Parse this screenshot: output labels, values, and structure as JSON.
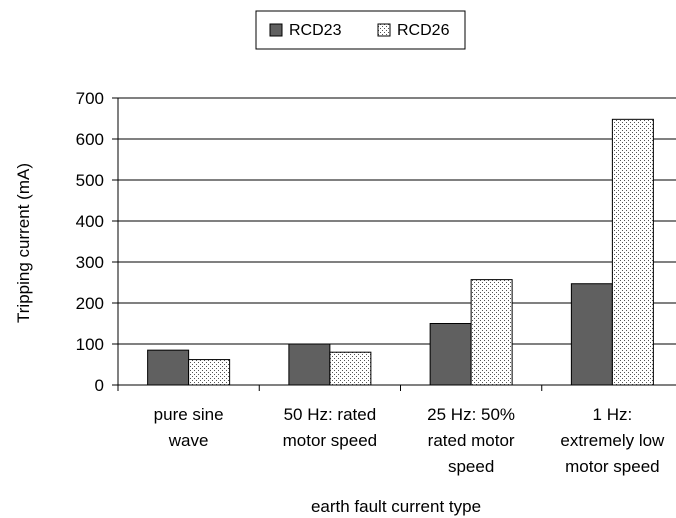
{
  "chart_data": {
    "type": "bar",
    "title": "",
    "xlabel": "earth fault current type",
    "ylabel": "Tripping current (mA)",
    "ylim": [
      0,
      700
    ],
    "yticks": [
      0,
      100,
      200,
      300,
      400,
      500,
      600,
      700
    ],
    "grid": "horizontal",
    "legend_position": "top",
    "categories": [
      [
        "pure sine",
        "wave"
      ],
      [
        "50 Hz: rated",
        "motor speed"
      ],
      [
        "25 Hz: 50%",
        "rated motor",
        "speed"
      ],
      [
        "1 Hz:",
        "extremely low",
        "motor speed"
      ]
    ],
    "series": [
      {
        "name": "RCD23",
        "values": [
          85,
          100,
          150,
          247
        ],
        "color": "#606060",
        "pattern": "solid"
      },
      {
        "name": "RCD26",
        "values": [
          62,
          80,
          257,
          648
        ],
        "color": "#ffffff",
        "pattern": "dotted"
      }
    ]
  }
}
